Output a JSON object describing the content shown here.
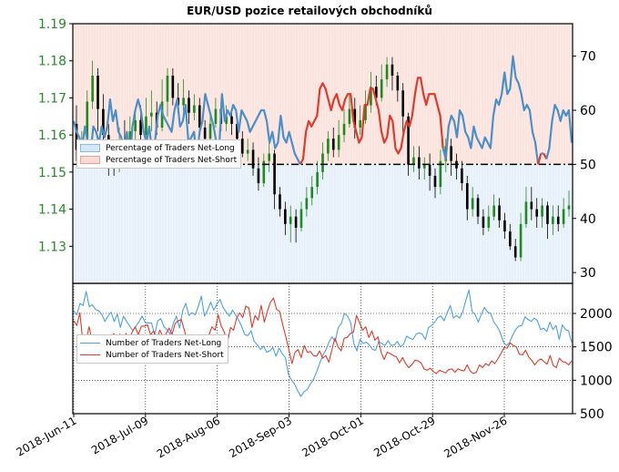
{
  "chart_data": [
    {
      "type": "line",
      "title": "EUR/USD pozice retailových obchodníků",
      "left_axis": {
        "ticks": [
          "1.19",
          "1.18",
          "1.17",
          "1.16",
          "1.15",
          "1.14",
          "1.13"
        ],
        "ylim": [
          1.12,
          1.19
        ],
        "color": "#2a8a2a"
      },
      "right_axis": {
        "ticks": [
          "70",
          "60",
          "50",
          "40",
          "30"
        ],
        "ylim": [
          28,
          76
        ]
      },
      "reference_line": {
        "percent": 50,
        "style": "dash-dot",
        "color": "#000000"
      },
      "legend": {
        "placement": "left",
        "entries": [
          "Percentage of Traders Net-Long",
          "Percentage of Traders Net-Short"
        ]
      },
      "series": [
        {
          "name": "Percentage of Traders Net-Long",
          "color": "#4a90c8",
          "fill": "#d6e8f7",
          "values": [
            58,
            56,
            55,
            53,
            57,
            54,
            52,
            57,
            56,
            54,
            57,
            55,
            57,
            62,
            58,
            60,
            56,
            55,
            52,
            56,
            50,
            57,
            60,
            62,
            60,
            56,
            54,
            57,
            52,
            54,
            59,
            61,
            59,
            58,
            57,
            56,
            60,
            62,
            57,
            58,
            61,
            54,
            55,
            56,
            51,
            56,
            58,
            63,
            61,
            59,
            57,
            54,
            53,
            63,
            58,
            60,
            59,
            61,
            60,
            56,
            60,
            59,
            58,
            56,
            57,
            58,
            59,
            60,
            60,
            58,
            54,
            56,
            53,
            54,
            59,
            55,
            54,
            56,
            54,
            52,
            51,
            50,
            49,
            44,
            42,
            43,
            42,
            41,
            36,
            35,
            36,
            38,
            40,
            38,
            37,
            39,
            40,
            38,
            37,
            37,
            42,
            44,
            46,
            45,
            39,
            39,
            36,
            36,
            38,
            40,
            44,
            46,
            45,
            41,
            42,
            47,
            48,
            47,
            44,
            42,
            43,
            41,
            37,
            34,
            34,
            37,
            39,
            37,
            37,
            37,
            39,
            41,
            47,
            51,
            57,
            59,
            58,
            55,
            60,
            59,
            56,
            55,
            53,
            57,
            55,
            54,
            53,
            55,
            54,
            53,
            59,
            62,
            61,
            63,
            67,
            63,
            64,
            70,
            66,
            65,
            63,
            60,
            61,
            60,
            56,
            54,
            50,
            48,
            52,
            49,
            53,
            58,
            61,
            60,
            58,
            60,
            59,
            60,
            54
          ]
        },
        {
          "name": "Percentage of Traders Net-Short",
          "color": "#e03a2a",
          "fill": "#fbd9d4"
        }
      ]
    },
    {
      "type": "line",
      "right_axis": {
        "ticks": [
          "2000",
          "1500",
          "1000",
          "500"
        ],
        "ylim": [
          500,
          2450
        ]
      },
      "legend": {
        "placement": "left",
        "entries": [
          "Number of Traders Net-Long",
          "Number of Traders Net-Short"
        ]
      },
      "series": [
        {
          "name": "Number of Traders Net-Long",
          "color": "#4aa0e8",
          "values": [
            2030,
            1980,
            2150,
            2120,
            2330,
            2100,
            2130,
            2060,
            2040,
            1990,
            1880,
            1960,
            2020,
            1880,
            1990,
            1790,
            1960,
            1880,
            1810,
            1740,
            1810,
            1880,
            1960,
            1860,
            1860,
            1860,
            1680,
            1890,
            1920,
            1800,
            1760,
            1690,
            1850,
            1960,
            1780,
            2040,
            2150,
            1970,
            2010,
            1980,
            2100,
            2260,
            1960,
            2050,
            2170,
            2050,
            2140,
            2210,
            2090,
            2020,
            1960,
            2050,
            1980,
            1900,
            1800,
            1680,
            1670,
            1740,
            1580,
            1530,
            1460,
            1510,
            1420,
            1440,
            1490,
            1360,
            1480,
            1400,
            1340,
            1090,
            1000,
            940,
            840,
            760,
            830,
            860,
            940,
            1010,
            1120,
            1250,
            1370,
            1450,
            1570,
            1650,
            1580,
            1790,
            1850,
            2000,
            1960,
            1860,
            1550,
            1440,
            1610,
            1550,
            1570,
            1530,
            1460,
            1450,
            1580,
            1550,
            1520,
            1590,
            1520,
            1530,
            1580,
            1500,
            1540,
            1660,
            1630,
            1610,
            1690,
            1710,
            1690,
            1610,
            1790,
            1820,
            1870,
            1940,
            1960,
            1890,
            2010,
            2120,
            1930,
            1970,
            1930,
            2020,
            2200,
            2350,
            2030,
            1980,
            1870,
            1990,
            2090,
            2020,
            2000,
            1870,
            1810,
            1720,
            1580,
            1520,
            1560,
            1670,
            1760,
            1810,
            1820,
            1950,
            1910,
            1880,
            1930,
            1890,
            1760,
            1780,
            1730,
            1870,
            1760,
            1820,
            1610,
            1830,
            1760,
            1740,
            1570
          ]
        },
        {
          "name": "Number of Traders Net-Short",
          "color": "#e03a2a",
          "values": [
            1890,
            1820,
            2010,
            1560,
            1600,
            1800,
            1590,
            1670,
            1620,
            1520,
            1420,
            1510,
            1560,
            1700,
            1590,
            1690,
            1580,
            1700,
            1610,
            1720,
            1800,
            1680,
            1810,
            1810,
            1830,
            1680,
            1740,
            1600,
            1750,
            1660,
            1690,
            1780,
            1690,
            1850,
            1890,
            1910,
            1750,
            1570,
            1480,
            1590,
            1600,
            1550,
            1590,
            1570,
            1680,
            1800,
            1750,
            1980,
            1810,
            1720,
            1560,
            1790,
            1750,
            1930,
            2010,
            1940,
            2110,
            2080,
            1790,
            1970,
            1900,
            2120,
            1870,
            2030,
            2170,
            2230,
            2060,
            2030,
            1830,
            1650,
            1460,
            1250,
            1420,
            1460,
            1340,
            1520,
            1420,
            1430,
            1370,
            1360,
            1440,
            1330,
            1370,
            1270,
            1460,
            1630,
            1500,
            1440,
            1630,
            1640,
            1700,
            1720,
            1970,
            1860,
            1750,
            1800,
            1640,
            1740,
            1600,
            1650,
            1420,
            1310,
            1420,
            1400,
            1370,
            1350,
            1260,
            1340,
            1250,
            1190,
            1230,
            1300,
            1290,
            1260,
            1170,
            1150,
            1180,
            1130,
            1100,
            1150,
            1130,
            1110,
            1160,
            1170,
            1120,
            1170,
            1150,
            1140,
            1230,
            1140,
            1100,
            1120,
            1230,
            1190,
            1250,
            1220,
            1290,
            1250,
            1320,
            1400,
            1490,
            1480,
            1560,
            1520,
            1500,
            1390,
            1380,
            1450,
            1350,
            1300,
            1230,
            1290,
            1320,
            1280,
            1240,
            1370,
            1220,
            1190,
            1330,
            1280,
            1270,
            1230,
            1290
          ]
        }
      ]
    }
  ],
  "x_tick_labels": [
    "2018-Jun-11",
    "2018-Jul-09",
    "2018-Aug-06",
    "2018-Sep-03",
    "2018-Oct-01",
    "2018-Oct-29",
    "2018-Nov-26"
  ],
  "candles": [
    {
      "o": 1.163,
      "c": 1.156,
      "h": 1.168,
      "l": 1.153
    },
    {
      "o": 1.156,
      "c": 1.158,
      "h": 1.161,
      "l": 1.152
    },
    {
      "o": 1.158,
      "c": 1.169,
      "h": 1.172,
      "l": 1.157
    },
    {
      "o": 1.169,
      "c": 1.176,
      "h": 1.18,
      "l": 1.167
    },
    {
      "o": 1.176,
      "c": 1.167,
      "h": 1.178,
      "l": 1.161
    },
    {
      "o": 1.167,
      "c": 1.16,
      "h": 1.171,
      "l": 1.158
    },
    {
      "o": 1.16,
      "c": 1.156,
      "h": 1.163,
      "l": 1.149
    },
    {
      "o": 1.156,
      "c": 1.151,
      "h": 1.158,
      "l": 1.149
    },
    {
      "o": 1.151,
      "c": 1.158,
      "h": 1.162,
      "l": 1.15
    },
    {
      "o": 1.158,
      "c": 1.154,
      "h": 1.164,
      "l": 1.152
    },
    {
      "o": 1.154,
      "c": 1.161,
      "h": 1.165,
      "l": 1.152
    },
    {
      "o": 1.161,
      "c": 1.164,
      "h": 1.167,
      "l": 1.157
    },
    {
      "o": 1.164,
      "c": 1.16,
      "h": 1.168,
      "l": 1.157
    },
    {
      "o": 1.16,
      "c": 1.165,
      "h": 1.17,
      "l": 1.158
    },
    {
      "o": 1.165,
      "c": 1.166,
      "h": 1.172,
      "l": 1.161
    },
    {
      "o": 1.166,
      "c": 1.162,
      "h": 1.169,
      "l": 1.16
    },
    {
      "o": 1.162,
      "c": 1.169,
      "h": 1.175,
      "l": 1.161
    },
    {
      "o": 1.169,
      "c": 1.176,
      "h": 1.178,
      "l": 1.165
    },
    {
      "o": 1.176,
      "c": 1.17,
      "h": 1.178,
      "l": 1.168
    },
    {
      "o": 1.17,
      "c": 1.168,
      "h": 1.174,
      "l": 1.166
    },
    {
      "o": 1.168,
      "c": 1.17,
      "h": 1.175,
      "l": 1.165
    },
    {
      "o": 1.17,
      "c": 1.166,
      "h": 1.172,
      "l": 1.163
    },
    {
      "o": 1.166,
      "c": 1.168,
      "h": 1.171,
      "l": 1.164
    },
    {
      "o": 1.168,
      "c": 1.162,
      "h": 1.17,
      "l": 1.161
    },
    {
      "o": 1.162,
      "c": 1.159,
      "h": 1.164,
      "l": 1.157
    },
    {
      "o": 1.159,
      "c": 1.163,
      "h": 1.165,
      "l": 1.157
    },
    {
      "o": 1.163,
      "c": 1.167,
      "h": 1.17,
      "l": 1.162
    },
    {
      "o": 1.167,
      "c": 1.163,
      "h": 1.169,
      "l": 1.161
    },
    {
      "o": 1.163,
      "c": 1.165,
      "h": 1.168,
      "l": 1.161
    },
    {
      "o": 1.165,
      "c": 1.163,
      "h": 1.167,
      "l": 1.16
    },
    {
      "o": 1.163,
      "c": 1.159,
      "h": 1.165,
      "l": 1.156
    },
    {
      "o": 1.159,
      "c": 1.155,
      "h": 1.161,
      "l": 1.154
    },
    {
      "o": 1.155,
      "c": 1.156,
      "h": 1.159,
      "l": 1.153
    },
    {
      "o": 1.156,
      "c": 1.151,
      "h": 1.158,
      "l": 1.149
    },
    {
      "o": 1.151,
      "c": 1.147,
      "h": 1.154,
      "l": 1.145
    },
    {
      "o": 1.147,
      "c": 1.153,
      "h": 1.155,
      "l": 1.146
    },
    {
      "o": 1.153,
      "c": 1.155,
      "h": 1.158,
      "l": 1.15
    },
    {
      "o": 1.155,
      "c": 1.144,
      "h": 1.156,
      "l": 1.14
    },
    {
      "o": 1.144,
      "c": 1.14,
      "h": 1.146,
      "l": 1.138
    },
    {
      "o": 1.14,
      "c": 1.136,
      "h": 1.142,
      "l": 1.133
    },
    {
      "o": 1.136,
      "c": 1.138,
      "h": 1.141,
      "l": 1.131
    },
    {
      "o": 1.138,
      "c": 1.135,
      "h": 1.14,
      "l": 1.131
    },
    {
      "o": 1.135,
      "c": 1.14,
      "h": 1.142,
      "l": 1.134
    },
    {
      "o": 1.14,
      "c": 1.143,
      "h": 1.146,
      "l": 1.138
    },
    {
      "o": 1.143,
      "c": 1.146,
      "h": 1.149,
      "l": 1.141
    },
    {
      "o": 1.146,
      "c": 1.15,
      "h": 1.153,
      "l": 1.144
    },
    {
      "o": 1.15,
      "c": 1.155,
      "h": 1.158,
      "l": 1.148
    },
    {
      "o": 1.155,
      "c": 1.159,
      "h": 1.161,
      "l": 1.153
    },
    {
      "o": 1.159,
      "c": 1.156,
      "h": 1.162,
      "l": 1.154
    },
    {
      "o": 1.156,
      "c": 1.16,
      "h": 1.164,
      "l": 1.154
    },
    {
      "o": 1.16,
      "c": 1.163,
      "h": 1.167,
      "l": 1.158
    },
    {
      "o": 1.163,
      "c": 1.167,
      "h": 1.171,
      "l": 1.162
    },
    {
      "o": 1.167,
      "c": 1.162,
      "h": 1.17,
      "l": 1.159
    },
    {
      "o": 1.162,
      "c": 1.164,
      "h": 1.168,
      "l": 1.16
    },
    {
      "o": 1.164,
      "c": 1.168,
      "h": 1.172,
      "l": 1.163
    },
    {
      "o": 1.168,
      "c": 1.173,
      "h": 1.177,
      "l": 1.166
    },
    {
      "o": 1.173,
      "c": 1.17,
      "h": 1.176,
      "l": 1.168
    },
    {
      "o": 1.17,
      "c": 1.175,
      "h": 1.179,
      "l": 1.169
    },
    {
      "o": 1.175,
      "c": 1.179,
      "h": 1.181,
      "l": 1.173
    },
    {
      "o": 1.179,
      "c": 1.176,
      "h": 1.181,
      "l": 1.172
    },
    {
      "o": 1.176,
      "c": 1.172,
      "h": 1.177,
      "l": 1.169
    },
    {
      "o": 1.172,
      "c": 1.165,
      "h": 1.174,
      "l": 1.159
    },
    {
      "o": 1.165,
      "c": 1.152,
      "h": 1.166,
      "l": 1.149
    },
    {
      "o": 1.152,
      "c": 1.154,
      "h": 1.157,
      "l": 1.15
    },
    {
      "o": 1.154,
      "c": 1.151,
      "h": 1.157,
      "l": 1.148
    },
    {
      "o": 1.151,
      "c": 1.152,
      "h": 1.154,
      "l": 1.148
    },
    {
      "o": 1.152,
      "c": 1.149,
      "h": 1.155,
      "l": 1.145
    },
    {
      "o": 1.149,
      "c": 1.146,
      "h": 1.151,
      "l": 1.143
    },
    {
      "o": 1.146,
      "c": 1.153,
      "h": 1.156,
      "l": 1.144
    },
    {
      "o": 1.153,
      "c": 1.157,
      "h": 1.159,
      "l": 1.15
    },
    {
      "o": 1.157,
      "c": 1.153,
      "h": 1.159,
      "l": 1.149
    },
    {
      "o": 1.153,
      "c": 1.151,
      "h": 1.155,
      "l": 1.148
    },
    {
      "o": 1.151,
      "c": 1.147,
      "h": 1.153,
      "l": 1.145
    },
    {
      "o": 1.147,
      "c": 1.14,
      "h": 1.149,
      "l": 1.137
    },
    {
      "o": 1.14,
      "c": 1.143,
      "h": 1.146,
      "l": 1.138
    },
    {
      "o": 1.143,
      "c": 1.138,
      "h": 1.144,
      "l": 1.136
    },
    {
      "o": 1.138,
      "c": 1.135,
      "h": 1.14,
      "l": 1.133
    },
    {
      "o": 1.135,
      "c": 1.138,
      "h": 1.141,
      "l": 1.134
    },
    {
      "o": 1.138,
      "c": 1.141,
      "h": 1.144,
      "l": 1.137
    },
    {
      "o": 1.141,
      "c": 1.137,
      "h": 1.143,
      "l": 1.135
    },
    {
      "o": 1.137,
      "c": 1.134,
      "h": 1.139,
      "l": 1.132
    },
    {
      "o": 1.134,
      "c": 1.13,
      "h": 1.136,
      "l": 1.129
    },
    {
      "o": 1.13,
      "c": 1.127,
      "h": 1.132,
      "l": 1.126
    },
    {
      "o": 1.127,
      "c": 1.136,
      "h": 1.139,
      "l": 1.126
    },
    {
      "o": 1.136,
      "c": 1.142,
      "h": 1.146,
      "l": 1.135
    },
    {
      "o": 1.142,
      "c": 1.14,
      "h": 1.146,
      "l": 1.137
    },
    {
      "o": 1.14,
      "c": 1.138,
      "h": 1.143,
      "l": 1.135
    },
    {
      "o": 1.138,
      "c": 1.141,
      "h": 1.143,
      "l": 1.135
    },
    {
      "o": 1.141,
      "c": 1.136,
      "h": 1.142,
      "l": 1.132
    },
    {
      "o": 1.136,
      "c": 1.138,
      "h": 1.141,
      "l": 1.133
    },
    {
      "o": 1.138,
      "c": 1.136,
      "h": 1.141,
      "l": 1.134
    },
    {
      "o": 1.136,
      "c": 1.14,
      "h": 1.143,
      "l": 1.135
    },
    {
      "o": 1.14,
      "c": 1.141,
      "h": 1.145,
      "l": 1.138
    }
  ],
  "visual": {
    "neutral_line_percent": 50,
    "top_x_ticks": 7
  }
}
